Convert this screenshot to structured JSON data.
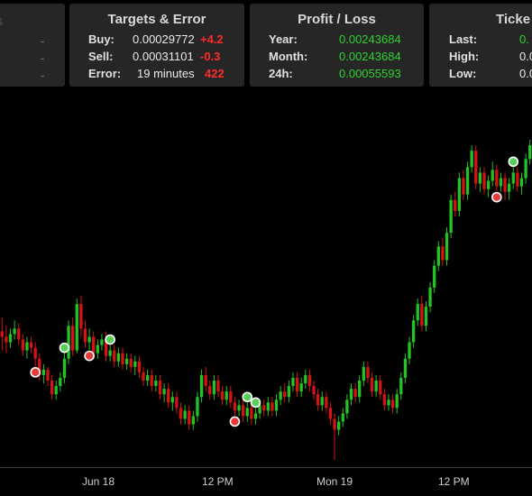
{
  "panels": {
    "left": {
      "faint_title": "ts",
      "rows": [
        "-",
        "-",
        "-"
      ]
    },
    "targets": {
      "title": "Targets & Error",
      "rows": [
        {
          "label": "Buy:",
          "value": "0.00029772",
          "change": "+4.2"
        },
        {
          "label": "Sell:",
          "value": "0.00031101",
          "change": "-0.3"
        },
        {
          "label": "Error:",
          "value": "19 minutes",
          "change": "422"
        }
      ]
    },
    "profit": {
      "title": "Profit / Loss",
      "rows": [
        {
          "label": "Year:",
          "value": "0.00243684"
        },
        {
          "label": "Month:",
          "value": "0.00243684"
        },
        {
          "label": "24h:",
          "value": "0.00055593"
        }
      ]
    },
    "ticker": {
      "title": "Ticke",
      "rows": [
        {
          "label": "Last:",
          "value": "0."
        },
        {
          "label": "High:",
          "value": "0.0"
        },
        {
          "label": "Low:",
          "value": "0.0"
        }
      ]
    }
  },
  "chart_data": {
    "type": "candlestick",
    "x_ticks": [
      "Jun 18",
      "12 PM",
      "Mon 19",
      "12 PM"
    ],
    "colors": {
      "up": "#22c322",
      "down": "#d41414",
      "marker_sell": "#e83a3a",
      "marker_buy": "#58d058"
    },
    "candles": [
      [
        102,
        100,
        107,
        95
      ],
      [
        100,
        98,
        104,
        94
      ],
      [
        98,
        101,
        103,
        96
      ],
      [
        101,
        103,
        106,
        99
      ],
      [
        103,
        99,
        105,
        97
      ],
      [
        99,
        95,
        101,
        93
      ],
      [
        95,
        98,
        100,
        92
      ],
      [
        98,
        96,
        100,
        94
      ],
      [
        96,
        92,
        98,
        89
      ],
      [
        92,
        86,
        94,
        84
      ],
      [
        86,
        88,
        90,
        83
      ],
      [
        88,
        84,
        89,
        82
      ],
      [
        84,
        79,
        86,
        77
      ],
      [
        79,
        82,
        84,
        77
      ],
      [
        82,
        85,
        87,
        80
      ],
      [
        85,
        92,
        94,
        83
      ],
      [
        92,
        104,
        106,
        90
      ],
      [
        104,
        95,
        107,
        93
      ],
      [
        95,
        112,
        114,
        94
      ],
      [
        112,
        103,
        115,
        100
      ],
      [
        103,
        98,
        106,
        96
      ],
      [
        98,
        100,
        103,
        95
      ],
      [
        100,
        94,
        102,
        92
      ],
      [
        94,
        97,
        99,
        92
      ],
      [
        97,
        99,
        101,
        95
      ],
      [
        99,
        93,
        102,
        91
      ],
      [
        93,
        95,
        97,
        91
      ],
      [
        95,
        91,
        97,
        89
      ],
      [
        91,
        94,
        96,
        89
      ],
      [
        94,
        90,
        96,
        88
      ],
      [
        90,
        92,
        94,
        88
      ],
      [
        92,
        89,
        94,
        87
      ],
      [
        89,
        91,
        93,
        86
      ],
      [
        91,
        87,
        93,
        85
      ],
      [
        87,
        84,
        89,
        82
      ],
      [
        84,
        86,
        88,
        82
      ],
      [
        86,
        82,
        88,
        80
      ],
      [
        82,
        84,
        86,
        80
      ],
      [
        84,
        79,
        86,
        77
      ],
      [
        79,
        81,
        83,
        76
      ],
      [
        81,
        76,
        83,
        74
      ],
      [
        76,
        78,
        80,
        73
      ],
      [
        78,
        74,
        80,
        72
      ],
      [
        74,
        70,
        76,
        68
      ],
      [
        70,
        73,
        75,
        68
      ],
      [
        73,
        68,
        75,
        66
      ],
      [
        68,
        71,
        73,
        66
      ],
      [
        71,
        78,
        80,
        69
      ],
      [
        78,
        86,
        88,
        76
      ],
      [
        86,
        82,
        89,
        80
      ],
      [
        82,
        79,
        84,
        77
      ],
      [
        79,
        84,
        86,
        77
      ],
      [
        84,
        80,
        86,
        78
      ],
      [
        80,
        77,
        82,
        75
      ],
      [
        77,
        80,
        82,
        75
      ],
      [
        80,
        76,
        82,
        74
      ],
      [
        76,
        73,
        78,
        71
      ],
      [
        73,
        75,
        77,
        71
      ],
      [
        75,
        71,
        77,
        69
      ],
      [
        71,
        74,
        76,
        69
      ],
      [
        74,
        70,
        76,
        68
      ],
      [
        70,
        72,
        74,
        68
      ],
      [
        72,
        75,
        77,
        70
      ],
      [
        75,
        73,
        77,
        71
      ],
      [
        73,
        76,
        78,
        71
      ],
      [
        76,
        73,
        78,
        71
      ],
      [
        73,
        77,
        79,
        71
      ],
      [
        77,
        80,
        82,
        75
      ],
      [
        80,
        78,
        83,
        76
      ],
      [
        78,
        82,
        84,
        76
      ],
      [
        82,
        85,
        87,
        80
      ],
      [
        85,
        80,
        87,
        78
      ],
      [
        80,
        83,
        85,
        78
      ],
      [
        83,
        86,
        88,
        81
      ],
      [
        86,
        82,
        88,
        80
      ],
      [
        82,
        79,
        84,
        77
      ],
      [
        79,
        75,
        81,
        73
      ],
      [
        75,
        78,
        80,
        73
      ],
      [
        78,
        74,
        80,
        72
      ],
      [
        74,
        70,
        76,
        68
      ],
      [
        70,
        66,
        72,
        55
      ],
      [
        66,
        69,
        71,
        64
      ],
      [
        69,
        72,
        74,
        67
      ],
      [
        72,
        77,
        79,
        70
      ],
      [
        77,
        81,
        83,
        75
      ],
      [
        81,
        78,
        83,
        76
      ],
      [
        78,
        84,
        86,
        76
      ],
      [
        84,
        89,
        91,
        82
      ],
      [
        89,
        85,
        91,
        83
      ],
      [
        85,
        80,
        87,
        78
      ],
      [
        80,
        84,
        86,
        78
      ],
      [
        84,
        79,
        86,
        77
      ],
      [
        79,
        75,
        81,
        73
      ],
      [
        75,
        77,
        79,
        73
      ],
      [
        77,
        74,
        79,
        72
      ],
      [
        74,
        79,
        81,
        72
      ],
      [
        79,
        85,
        87,
        77
      ],
      [
        85,
        92,
        94,
        83
      ],
      [
        92,
        98,
        100,
        90
      ],
      [
        98,
        106,
        108,
        96
      ],
      [
        106,
        112,
        114,
        104
      ],
      [
        112,
        104,
        115,
        102
      ],
      [
        104,
        111,
        113,
        102
      ],
      [
        111,
        118,
        120,
        109
      ],
      [
        118,
        126,
        128,
        116
      ],
      [
        126,
        133,
        135,
        124
      ],
      [
        133,
        128,
        136,
        126
      ],
      [
        128,
        138,
        140,
        126
      ],
      [
        138,
        150,
        152,
        136
      ],
      [
        150,
        146,
        153,
        144
      ],
      [
        146,
        158,
        160,
        144
      ],
      [
        158,
        152,
        161,
        150
      ],
      [
        152,
        162,
        164,
        150
      ],
      [
        162,
        168,
        170,
        160
      ],
      [
        168,
        156,
        170,
        154
      ],
      [
        156,
        160,
        162,
        153
      ],
      [
        160,
        154,
        162,
        152
      ],
      [
        154,
        157,
        159,
        151
      ],
      [
        157,
        161,
        164,
        155
      ],
      [
        161,
        155,
        163,
        153
      ],
      [
        155,
        158,
        160,
        153
      ],
      [
        158,
        153,
        160,
        150
      ],
      [
        153,
        156,
        158,
        150
      ],
      [
        156,
        160,
        162,
        154
      ],
      [
        160,
        155,
        162,
        153
      ],
      [
        155,
        158,
        160,
        152
      ],
      [
        158,
        165,
        167,
        156
      ],
      [
        165,
        170,
        172,
        163
      ]
    ],
    "markers": [
      {
        "i": 8,
        "type": "sell"
      },
      {
        "i": 15,
        "type": "buy"
      },
      {
        "i": 21,
        "type": "sell"
      },
      {
        "i": 26,
        "type": "buy"
      },
      {
        "i": 56,
        "type": "sell"
      },
      {
        "i": 59,
        "type": "buy"
      },
      {
        "i": 61,
        "type": "buy"
      },
      {
        "i": 119,
        "type": "sell"
      },
      {
        "i": 123,
        "type": "buy"
      }
    ]
  }
}
